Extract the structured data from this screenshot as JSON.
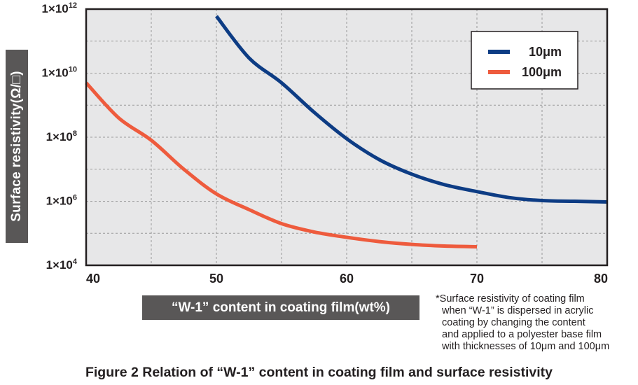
{
  "chart_data": {
    "type": "line",
    "xlabel": "“W-1” content in coating film(wt%)",
    "ylabel": "Surface resistivity(Ω/□)",
    "xlim": [
      40,
      80
    ],
    "ylim": [
      10000,
      1000000000000
    ],
    "yscale": "log",
    "x_ticks": [
      "40",
      "50",
      "60",
      "70",
      "80"
    ],
    "y_ticks": [
      {
        "value": 10000,
        "base": "1×10",
        "exp": "4"
      },
      {
        "value": 1000000,
        "base": "1×10",
        "exp": "6"
      },
      {
        "value": 100000000,
        "base": "1×10",
        "exp": "8"
      },
      {
        "value": 10000000000,
        "base": "1×10",
        "exp": "10"
      },
      {
        "value": 1000000000000,
        "base": "1×10",
        "exp": "12"
      }
    ],
    "grid": true,
    "legend_position": "top-right",
    "series": [
      {
        "name": "10μm",
        "color": "#0d3c84",
        "points": [
          {
            "x": 50,
            "y": 600000000000
          },
          {
            "x": 52.5,
            "y": 30000000000
          },
          {
            "x": 55,
            "y": 5000000000
          },
          {
            "x": 57.5,
            "y": 600000000
          },
          {
            "x": 60,
            "y": 90000000
          },
          {
            "x": 62.5,
            "y": 20000000
          },
          {
            "x": 65,
            "y": 7000000
          },
          {
            "x": 67.5,
            "y": 3300000
          },
          {
            "x": 70,
            "y": 2000000
          },
          {
            "x": 72.5,
            "y": 1300000
          },
          {
            "x": 75,
            "y": 1050000
          },
          {
            "x": 77.5,
            "y": 1000000
          },
          {
            "x": 80,
            "y": 950000
          }
        ]
      },
      {
        "name": "100μm",
        "color": "#ee5b3d",
        "points": [
          {
            "x": 40,
            "y": 5000000000
          },
          {
            "x": 42.5,
            "y": 400000000
          },
          {
            "x": 45,
            "y": 80000000
          },
          {
            "x": 47.5,
            "y": 10000000
          },
          {
            "x": 50,
            "y": 1700000
          },
          {
            "x": 52.5,
            "y": 550000
          },
          {
            "x": 55,
            "y": 200000
          },
          {
            "x": 57.5,
            "y": 110000
          },
          {
            "x": 60,
            "y": 75000
          },
          {
            "x": 62.5,
            "y": 55000
          },
          {
            "x": 65,
            "y": 45000
          },
          {
            "x": 67.5,
            "y": 40000
          },
          {
            "x": 70,
            "y": 38000
          }
        ]
      }
    ]
  },
  "footnote": {
    "lines": [
      "*Surface resistivity of coating film",
      "when “W-1” is dispersed in acrylic",
      "coating by changing the content",
      "and applied to a polyester base film",
      "with thicknesses of 10μm and 100μm"
    ]
  },
  "caption": "Figure 2 Relation of “W-1” content in coating film and surface resistivity",
  "colors": {
    "plot_background": "#e7e7e8",
    "axis": "#231f20",
    "grid": "#9a9a9a",
    "label_box": "#595757"
  }
}
